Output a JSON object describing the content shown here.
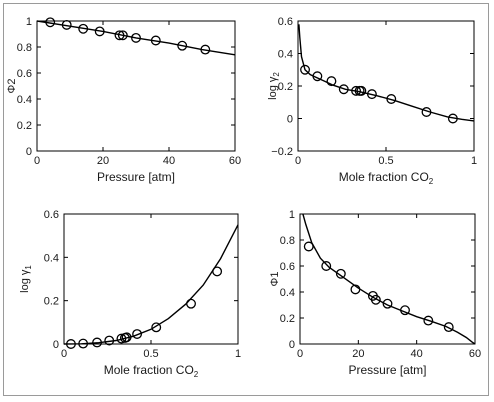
{
  "colors": {
    "line": "#000000",
    "frame": "#9a9a9a"
  },
  "chart_data": [
    {
      "type": "scatter",
      "panel": "top-left",
      "xlabel": "Pressure [atm]",
      "ylabel": "Φ2",
      "xlim": [
        0,
        60
      ],
      "ylim": [
        0,
        1
      ],
      "xticks": [
        0,
        20,
        40,
        60
      ],
      "yticks": [
        0,
        0.2,
        0.4,
        0.6,
        0.8,
        1
      ],
      "xtick_labels": [
        "0",
        "20",
        "40",
        "60"
      ],
      "ytick_labels": [
        "0",
        "0.2",
        "0.4",
        "0.6",
        "0.8",
        "1"
      ],
      "fit_curve": {
        "x": [
          0,
          10,
          20,
          30,
          40,
          50,
          60
        ],
        "y": [
          1.0,
          0.96,
          0.92,
          0.87,
          0.83,
          0.78,
          0.74
        ]
      },
      "points": {
        "x": [
          4,
          9,
          14,
          19,
          25,
          26,
          30,
          36,
          44,
          51
        ],
        "y": [
          0.99,
          0.97,
          0.94,
          0.92,
          0.89,
          0.89,
          0.87,
          0.85,
          0.81,
          0.78
        ]
      }
    },
    {
      "type": "scatter",
      "panel": "top-right",
      "xlabel": "Mole fraction CO",
      "xlabel_sub": "2",
      "ylabel": "log γ",
      "ylabel_sub": "2",
      "xlim": [
        0,
        1
      ],
      "ylim": [
        -0.2,
        0.6
      ],
      "xticks": [
        0,
        0.5,
        1
      ],
      "yticks": [
        -0.2,
        0,
        0.2,
        0.4,
        0.6
      ],
      "xtick_labels": [
        "0",
        "0.5",
        "1"
      ],
      "ytick_labels": [
        "−0.2",
        "0",
        "0.2",
        "0.4",
        "0.6"
      ],
      "fit_curve": {
        "x": [
          0.005,
          0.01,
          0.02,
          0.04,
          0.07,
          0.1,
          0.15,
          0.2,
          0.27,
          0.35,
          0.45,
          0.55,
          0.65,
          0.75,
          0.85,
          0.93,
          1.0
        ],
        "y": [
          0.58,
          0.5,
          0.38,
          0.3,
          0.27,
          0.255,
          0.23,
          0.205,
          0.18,
          0.165,
          0.14,
          0.11,
          0.075,
          0.04,
          0.01,
          -0.005,
          -0.015
        ]
      },
      "points": {
        "x": [
          0.04,
          0.11,
          0.19,
          0.26,
          0.33,
          0.35,
          0.36,
          0.42,
          0.53,
          0.73,
          0.88
        ],
        "y": [
          0.3,
          0.26,
          0.23,
          0.18,
          0.17,
          0.17,
          0.17,
          0.15,
          0.12,
          0.04,
          0.0
        ]
      }
    },
    {
      "type": "scatter",
      "panel": "bottom-left",
      "xlabel": "Mole fraction CO",
      "xlabel_sub": "2",
      "ylabel": "log γ",
      "ylabel_sub": "1",
      "xlim": [
        0,
        1
      ],
      "ylim": [
        0,
        0.6
      ],
      "xticks": [
        0,
        0.5,
        1
      ],
      "yticks": [
        0,
        0.2,
        0.4,
        0.6
      ],
      "xtick_labels": [
        "0",
        "0.5",
        "1"
      ],
      "ytick_labels": [
        "0",
        "0.2",
        "0.4",
        "0.6"
      ],
      "fit_curve": {
        "x": [
          0,
          0.1,
          0.2,
          0.3,
          0.4,
          0.5,
          0.6,
          0.7,
          0.8,
          0.9,
          1.0
        ],
        "y": [
          0.0,
          0.001,
          0.006,
          0.016,
          0.036,
          0.068,
          0.117,
          0.184,
          0.272,
          0.394,
          0.55
        ]
      },
      "points": {
        "x": [
          0.04,
          0.11,
          0.19,
          0.26,
          0.33,
          0.35,
          0.36,
          0.42,
          0.53,
          0.73,
          0.88
        ],
        "y": [
          0.0,
          0.002,
          0.007,
          0.016,
          0.025,
          0.028,
          0.031,
          0.046,
          0.077,
          0.186,
          0.335
        ]
      }
    },
    {
      "type": "scatter",
      "panel": "bottom-right",
      "xlabel": "Pressure [atm]",
      "ylabel": "Φ1",
      "xlim": [
        0,
        60
      ],
      "ylim": [
        0,
        1
      ],
      "xticks": [
        0,
        20,
        40,
        60
      ],
      "yticks": [
        0,
        0.2,
        0.4,
        0.6,
        0.8,
        1
      ],
      "xtick_labels": [
        "0",
        "20",
        "40",
        "60"
      ],
      "ytick_labels": [
        "0",
        "0.2",
        "0.4",
        "0.6",
        "0.8",
        "1"
      ],
      "fit_curve": {
        "x": [
          1,
          2,
          4,
          7,
          10,
          15,
          20,
          25,
          30,
          35,
          40,
          45,
          50,
          54,
          57,
          59,
          60
        ],
        "y": [
          1.0,
          0.92,
          0.78,
          0.66,
          0.59,
          0.51,
          0.43,
          0.36,
          0.3,
          0.255,
          0.21,
          0.175,
          0.135,
          0.09,
          0.05,
          0.015,
          0.0
        ]
      },
      "points": {
        "x": [
          3,
          9,
          14,
          19,
          25,
          26,
          30,
          36,
          44,
          51
        ],
        "y": [
          0.75,
          0.6,
          0.54,
          0.42,
          0.37,
          0.34,
          0.31,
          0.26,
          0.18,
          0.13
        ]
      }
    }
  ]
}
